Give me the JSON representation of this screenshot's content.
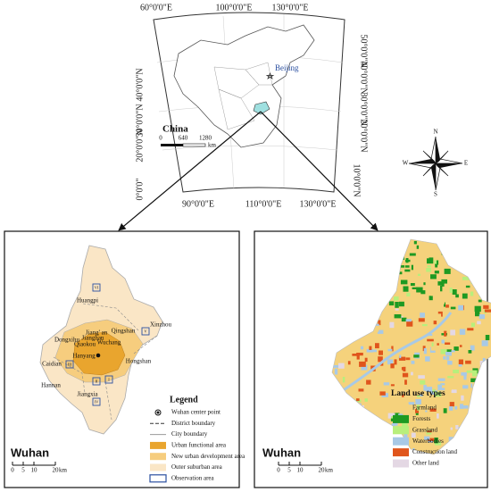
{
  "top_map": {
    "graticule_top": [
      "60°0'0\"E",
      "100°0'0\"E",
      "130°0'0\"E"
    ],
    "graticule_left": [
      "40°0'0\"N",
      "30°0'0\"N",
      "20°0'0\"N",
      "0°0'0\""
    ],
    "graticule_right": [
      "50°0'0\"N",
      "40°0'0\"N",
      "30°0'0\"N",
      "20°0'0\"N",
      "10°0'0\"N"
    ],
    "graticule_bottom": [
      "90°0'0\"E",
      "110°0'0\"E",
      "130°0'0\"E"
    ],
    "country_label": "China",
    "capital_label": "Beijing",
    "scale": {
      "ticks": [
        "0",
        "640",
        "1280"
      ],
      "unit": "km"
    }
  },
  "compass": {
    "n": "N",
    "s": "S",
    "e": "E",
    "w": "W"
  },
  "left_panel": {
    "district_labels": [
      "Huangpi",
      "Xinzhou",
      "Dongxihu",
      "Jiang' an",
      "Qingshan",
      "Jianghan",
      "Wuchang",
      "Qiaokou",
      "Hongshan",
      "Hanyang",
      "Caidian",
      "Hannan",
      "Jiangxia"
    ],
    "observation_areas": [
      "VI",
      "V",
      "III",
      "II",
      "I",
      "IV"
    ],
    "legend": {
      "title": "Legend",
      "items": [
        {
          "label": "Wuhan center point"
        },
        {
          "label": "District boundary"
        },
        {
          "label": "City boundary"
        },
        {
          "label": "Urban functional area",
          "color": "#e9a52e"
        },
        {
          "label": "New urban development area",
          "color": "#f6cd7e"
        },
        {
          "label": "Outer suburban area",
          "color": "#fae6c6"
        },
        {
          "label": "Observation area",
          "color": "#2a4fa0"
        }
      ]
    },
    "name": "Wuhan",
    "scale": {
      "ticks": [
        "0",
        "5",
        "10",
        "20"
      ],
      "unit": "km"
    }
  },
  "right_panel": {
    "legend": {
      "title": "Land use types",
      "items": [
        {
          "label": "Farmland",
          "color": "#f5d27c"
        },
        {
          "label": "Forests",
          "color": "#1e9a22"
        },
        {
          "label": "Grassland",
          "color": "#b8ef7c"
        },
        {
          "label": "Waterbodies",
          "color": "#a8c9e6"
        },
        {
          "label": "Construction land",
          "color": "#e0551c"
        },
        {
          "label": "Other land",
          "color": "#e4d8e4"
        }
      ]
    },
    "name": "Wuhan",
    "scale": {
      "ticks": [
        "0",
        "5",
        "10",
        "20"
      ],
      "unit": "km"
    }
  }
}
